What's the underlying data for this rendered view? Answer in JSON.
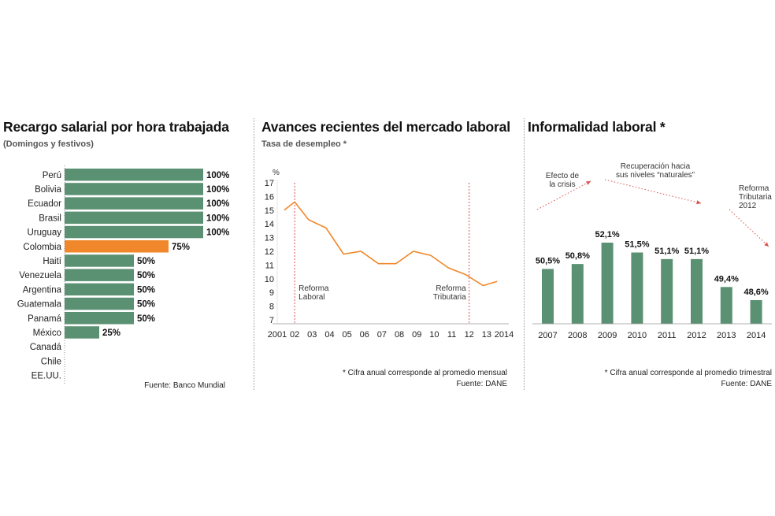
{
  "panels": {
    "left": {
      "title": "Recargo salarial por hora trabajada",
      "subtitle": "(Domingos y festivos)",
      "source": "Fuente: Banco Mundial"
    },
    "middle": {
      "title": "Avances recientes del mercado laboral",
      "subtitle": "Tasa de desempleo *",
      "note": "* Cifra anual corresponde al promedio mensual",
      "source": "Fuente: DANE"
    },
    "right": {
      "title": "Informalidad laboral *",
      "note": "* Cifra anual corresponde al promedio trimestral",
      "source": "Fuente: DANE"
    }
  },
  "colors": {
    "green": "#5b9173",
    "orange": "#f0882b",
    "red_dashed": "#d9534f",
    "axis": "#444444"
  },
  "chart_data": [
    {
      "type": "bar",
      "orientation": "horizontal",
      "title": "Recargo salarial por hora trabajada",
      "subtitle": "(Domingos y festivos)",
      "categories": [
        "Perú",
        "Bolivia",
        "Ecuador",
        "Brasil",
        "Uruguay",
        "Colombia",
        "Haití",
        "Venezuela",
        "Argentina",
        "Guatemala",
        "Panamá",
        "México",
        "Canadá",
        "Chile",
        "EE.UU."
      ],
      "values": [
        100,
        100,
        100,
        100,
        100,
        75,
        50,
        50,
        50,
        50,
        50,
        25,
        0,
        0,
        0
      ],
      "labels": [
        "100%",
        "100%",
        "100%",
        "100%",
        "100%",
        "75%",
        "50%",
        "50%",
        "50%",
        "50%",
        "50%",
        "25%",
        "",
        "",
        ""
      ],
      "highlight": "Colombia",
      "xlim": [
        0,
        100
      ]
    },
    {
      "type": "line",
      "title": "Avances recientes del mercado laboral",
      "subtitle": "Tasa de desempleo *",
      "ylabel": "%",
      "ylim": [
        7,
        17
      ],
      "yticks": [
        7,
        8,
        9,
        10,
        11,
        12,
        13,
        14,
        15,
        16,
        17
      ],
      "xticks": [
        "2001",
        "02",
        "03",
        "04",
        "05",
        "06",
        "07",
        "08",
        "09",
        "10",
        "11",
        "12",
        "13",
        "2014"
      ],
      "x": [
        2001.4,
        2002.0,
        2002.8,
        2003.8,
        2004.8,
        2005.8,
        2006.8,
        2007.8,
        2008.8,
        2009.8,
        2010.8,
        2011.8,
        2012.8,
        2013.6
      ],
      "y": [
        15.0,
        15.6,
        14.3,
        13.7,
        11.8,
        12.0,
        11.1,
        11.1,
        12.0,
        11.7,
        10.8,
        10.3,
        9.5,
        9.8
      ],
      "annotations": [
        {
          "x": 2002,
          "label": [
            "Reforma",
            "Laboral"
          ]
        },
        {
          "x": 2012,
          "label": [
            "Reforma",
            "Tributaria"
          ]
        }
      ]
    },
    {
      "type": "bar",
      "title": "Informalidad laboral *",
      "categories": [
        "2007",
        "2008",
        "2009",
        "2010",
        "2011",
        "2012",
        "2013",
        "2014"
      ],
      "values": [
        50.5,
        50.8,
        52.1,
        51.5,
        51.1,
        51.1,
        49.4,
        48.6
      ],
      "labels": [
        "50,5%",
        "50,8%",
        "52,1%",
        "51,5%",
        "51,1%",
        "51,1%",
        "49,4%",
        "48,6%"
      ],
      "annotations": [
        {
          "label": [
            "Efecto de",
            "la crisis"
          ]
        },
        {
          "label": [
            "Recuperación hacia",
            "sus niveles “naturales”"
          ]
        },
        {
          "label": [
            "Reforma",
            "Tributaria",
            "2012"
          ]
        }
      ]
    }
  ]
}
